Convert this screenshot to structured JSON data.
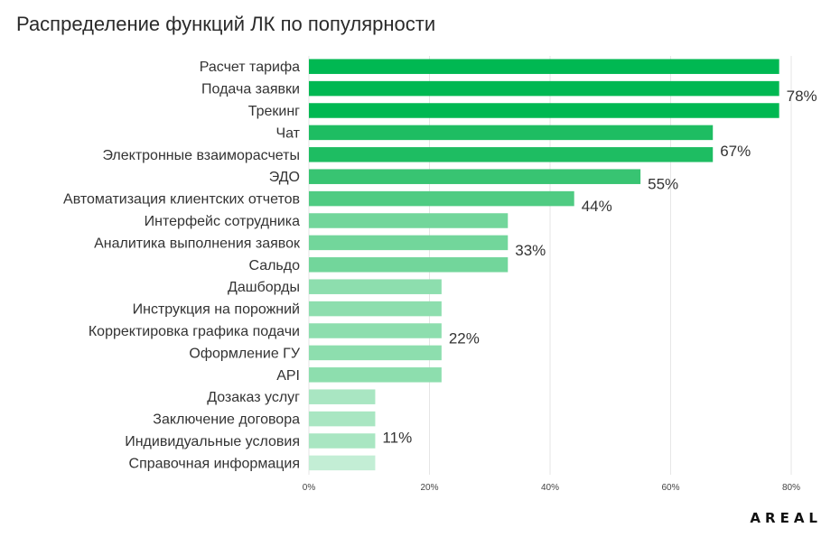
{
  "title": "Распределение функций ЛК по популярности",
  "logo": "AREAL",
  "chart_data": {
    "type": "bar",
    "orientation": "horizontal",
    "title": "Распределение функций ЛК по популярности",
    "xlabel": "",
    "ylabel": "",
    "xlim": [
      0,
      80
    ],
    "grid": "vertical",
    "ticks": [
      "0%",
      "20%",
      "40%",
      "60%",
      "80%"
    ],
    "tick_values": [
      0,
      20,
      40,
      60,
      80
    ],
    "categories": [
      "Расчет тарифа",
      "Подача заявки",
      "Трекинг",
      "Чат",
      "Электронные взаиморасчеты",
      "ЭДО",
      "Автоматизация клиентских отчетов",
      "Интерфейс сотрудника",
      "Аналитика выполнения заявок",
      "Сальдо",
      "Дашборды",
      "Инструкция на порожний",
      "Корректировка графика подачи",
      "Оформление ГУ",
      "API",
      "Дозаказ услуг",
      "Заключение договора",
      "Индивидуальные условия",
      "Справочная информация"
    ],
    "values": [
      78,
      78,
      78,
      67,
      67,
      55,
      44,
      33,
      33,
      33,
      22,
      22,
      22,
      22,
      22,
      11,
      11,
      11,
      11
    ],
    "colors": [
      "#00b852",
      "#00b852",
      "#00b852",
      "#1ebd62",
      "#1ebd62",
      "#38c472",
      "#4fcb82",
      "#72d69b",
      "#72d69b",
      "#72d69b",
      "#8ddeae",
      "#8ddeae",
      "#8ddeae",
      "#8ddeae",
      "#8ddeae",
      "#a9e6c2",
      "#a9e6c2",
      "#a9e6c2",
      "#c3eed5"
    ],
    "group_labels": [
      {
        "text": "78%",
        "value": 78,
        "center_index": 1
      },
      {
        "text": "67%",
        "value": 67,
        "center_index": 3.5
      },
      {
        "text": "55%",
        "value": 55,
        "center_index": 5
      },
      {
        "text": "44%",
        "value": 44,
        "center_index": 6
      },
      {
        "text": "33%",
        "value": 33,
        "center_index": 8
      },
      {
        "text": "22%",
        "value": 22,
        "center_index": 12
      },
      {
        "text": "11%",
        "value": 11,
        "center_index": 16.5
      }
    ]
  }
}
